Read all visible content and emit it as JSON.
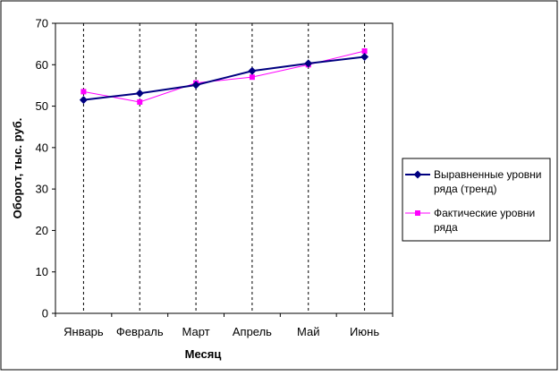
{
  "chart_data": {
    "type": "line",
    "categories": [
      "Январь",
      "Февраль",
      "Март",
      "Апрель",
      "Май",
      "Июнь"
    ],
    "series": [
      {
        "name": "Выравненные уровни ряда (тренд)",
        "values": [
          51.5,
          53.1,
          55.1,
          58.5,
          60.3,
          61.9
        ],
        "color": "#000080",
        "marker": "diamond"
      },
      {
        "name": "Фактические уровни ряда",
        "values": [
          53.5,
          51.0,
          55.6,
          57.0,
          60.0,
          63.3
        ],
        "color": "#ff00ff",
        "marker": "square"
      }
    ],
    "xlabel": "Месяц",
    "ylabel": "Оборот, тыс. руб.",
    "ylim": [
      0,
      70
    ],
    "yticks": [
      "0",
      "10",
      "20",
      "30",
      "40",
      "50",
      "60",
      "70"
    ],
    "grid": "vertical dashed",
    "legend_position": "right"
  },
  "legend": {
    "trend_line1": "Выравненные уровни",
    "trend_line2": "ряда (тренд)",
    "actual_line1": "Фактические уровни",
    "actual_line2": "ряда"
  }
}
